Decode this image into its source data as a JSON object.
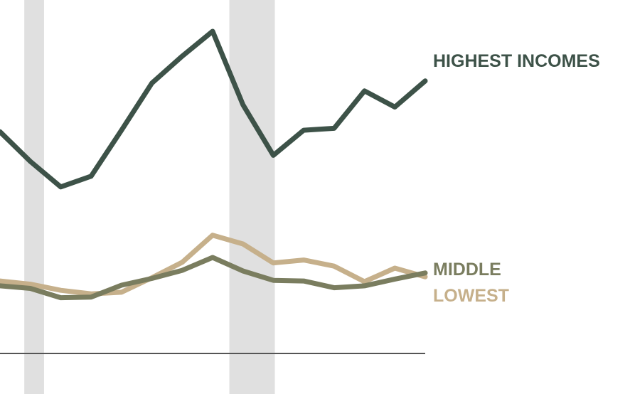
{
  "chart_data": {
    "type": "line",
    "title": "",
    "xlabel": "",
    "ylabel": "",
    "x": [
      0,
      1,
      2,
      3,
      4,
      5,
      6,
      7,
      8,
      9,
      10,
      11,
      12,
      13,
      14
    ],
    "xlim": [
      0,
      14
    ],
    "ylim": [
      0,
      100
    ],
    "grid": false,
    "legend": "direct-labels-right",
    "shaded_ranges": [
      [
        0.8,
        1.45
      ],
      [
        7.55,
        9.05
      ]
    ],
    "series": [
      {
        "name": "HIGHEST INCOMES",
        "color": "#3d5248",
        "values": [
          68.8,
          59.6,
          51.7,
          55.0,
          69.3,
          83.9,
          92.3,
          100.0,
          77.2,
          61.5,
          69.3,
          69.9,
          81.5,
          76.5,
          84.6
        ]
      },
      {
        "name": "MIDDLE",
        "color": "#7a7d5f",
        "values": [
          21.0,
          20.2,
          17.3,
          17.5,
          21.2,
          23.3,
          25.8,
          29.8,
          25.6,
          22.7,
          22.5,
          20.4,
          21.0,
          23.1,
          25.0
        ]
      },
      {
        "name": "LOWEST",
        "color": "#c6b08b",
        "values": [
          22.5,
          21.5,
          19.6,
          18.5,
          19.0,
          23.5,
          28.3,
          36.7,
          34.0,
          28.1,
          29.0,
          27.1,
          22.3,
          26.5,
          23.8
        ]
      }
    ]
  },
  "colors": {
    "baseline": "#555555",
    "shading": "#e0e0e0"
  }
}
